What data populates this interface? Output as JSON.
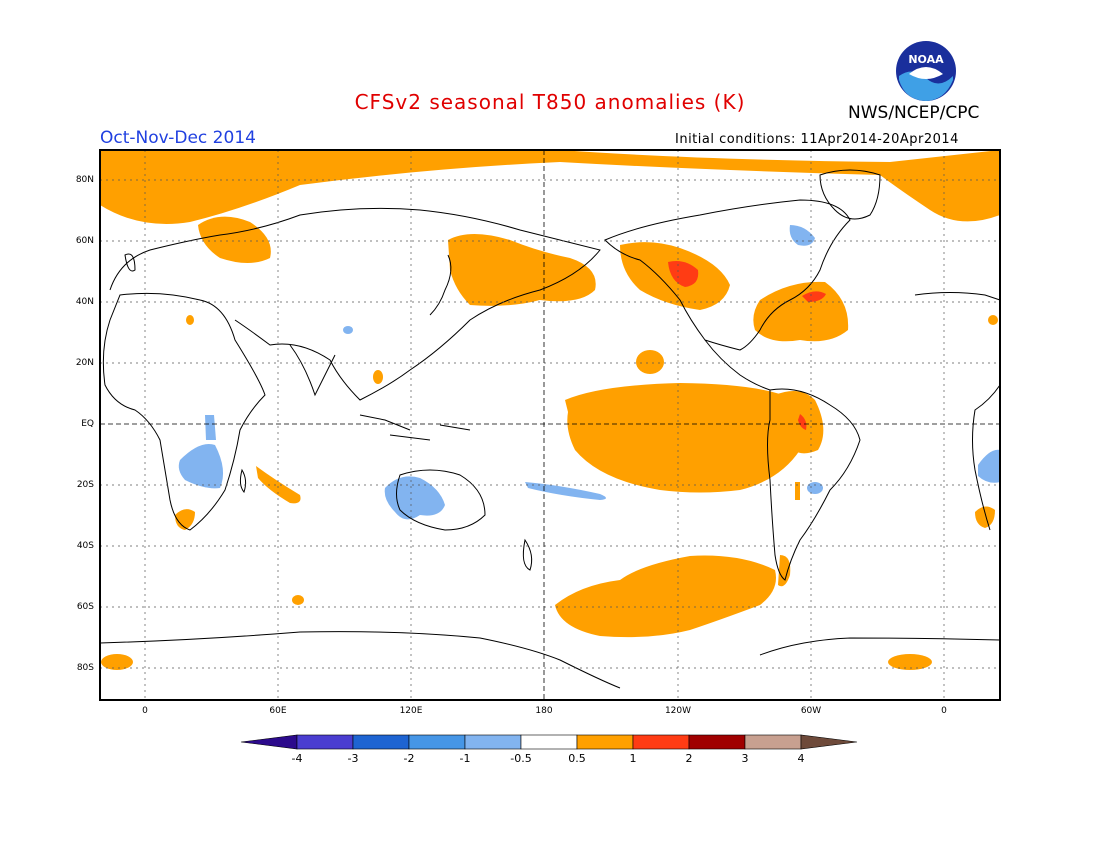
{
  "header": {
    "title": "CFSv2 seasonal T850 anomalies (K)",
    "org": "NWS/NCEP/CPC",
    "season": "Oct-Nov-Dec 2014",
    "initial_conditions": "Initial conditions: 11Apr2014-20Apr2014",
    "logo_text": "NOAA"
  },
  "map": {
    "lat_labels": [
      "80N",
      "60N",
      "40N",
      "20N",
      "EQ",
      "20S",
      "40S",
      "60S",
      "80S"
    ],
    "lon_labels": [
      "0",
      "60E",
      "120E",
      "180",
      "120W",
      "60W",
      "0"
    ]
  },
  "colorbar": {
    "labels": [
      "-4",
      "-3",
      "-2",
      "-1",
      "-0.5",
      "0.5",
      "1",
      "2",
      "3",
      "4"
    ],
    "colors": [
      "#2c0a8c",
      "#4a3dd0",
      "#1e64d2",
      "#4696e6",
      "#82b4f0",
      "#ffffff",
      "#ffa000",
      "#ff3c14",
      "#a00000",
      "#c8a090",
      "#6e4a3a"
    ]
  },
  "colors": {
    "warm1": "#ffa000",
    "warm2": "#ff3c14",
    "cool1": "#82b4f0",
    "title": "#e00000",
    "season": "#2040e0"
  }
}
